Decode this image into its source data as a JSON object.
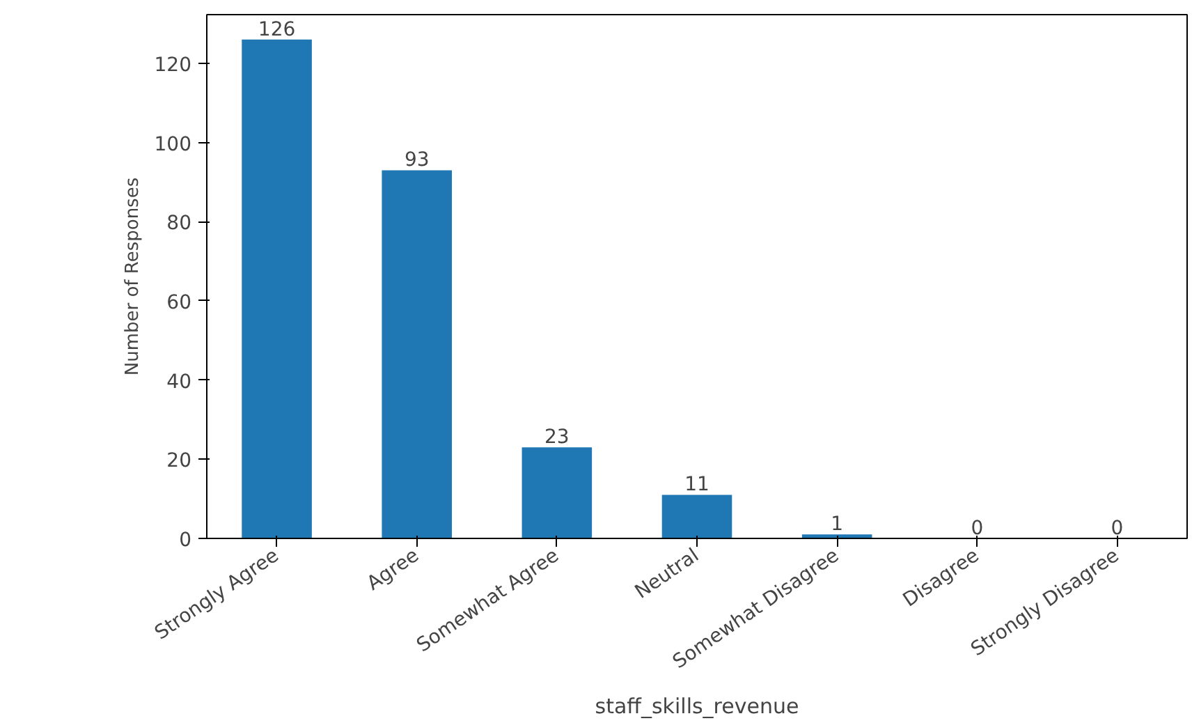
{
  "chart_data": {
    "type": "bar",
    "xlabel": "staff_skills_revenue",
    "ylabel": "Number of Responses",
    "categories": [
      "Strongly Agree",
      "Agree",
      "Somewhat Agree",
      "Neutral",
      "Somewhat Disagree",
      "Disagree",
      "Strongly Disagree"
    ],
    "values": [
      126,
      93,
      23,
      11,
      1,
      0,
      0
    ],
    "color": "#1f77b4",
    "ylim": [
      0,
      132.3
    ],
    "yticks": [
      0,
      20,
      40,
      60,
      80,
      100,
      120
    ],
    "data_labels": true,
    "grid": false
  }
}
